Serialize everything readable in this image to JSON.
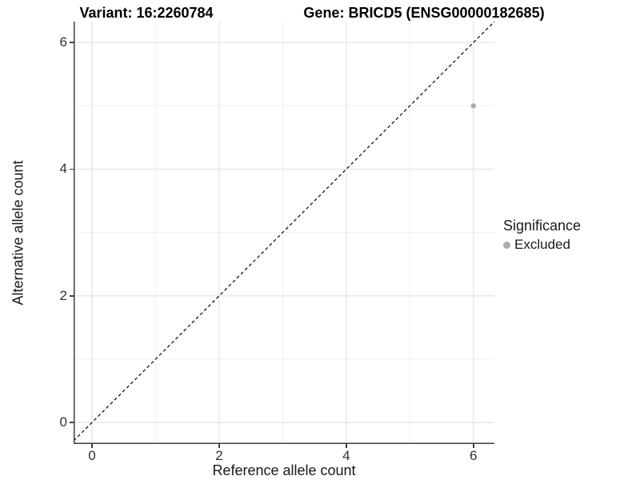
{
  "header": {
    "variant_title": "Variant: 16:2260784",
    "gene_title": "Gene: BRICD5 (ENSG00000182685)"
  },
  "chart_data": {
    "type": "scatter",
    "xlabel": "Reference allele count",
    "ylabel": "Alternative allele count",
    "xlim": [
      -0.29,
      6.33
    ],
    "ylim": [
      -0.34,
      6.33
    ],
    "x_major_ticks": [
      0,
      2,
      4,
      6
    ],
    "y_major_ticks": [
      0,
      2,
      4,
      6
    ],
    "x_minor_gridlines": [
      1,
      3,
      5
    ],
    "y_minor_gridlines": [
      1,
      3,
      5
    ],
    "grid": "major and minor gridlines on white panel",
    "identity_line": {
      "equation": "y = x",
      "style": "dashed",
      "color": "#000000"
    },
    "series": [
      {
        "name": "Excluded",
        "color": "#ababab",
        "points": [
          {
            "x": 6,
            "y": 5
          }
        ]
      }
    ],
    "legend": {
      "title": "Significance",
      "position": "right-middle",
      "entries": [
        {
          "label": "Excluded",
          "color": "#ababab"
        }
      ]
    }
  },
  "colors": {
    "background": "#ffffff",
    "major_grid": "#e4e4e4",
    "minor_grid": "#f1f1f1",
    "axis_line": "#3f3f3f",
    "tick_text": "#303030",
    "title_text": "#000000"
  }
}
